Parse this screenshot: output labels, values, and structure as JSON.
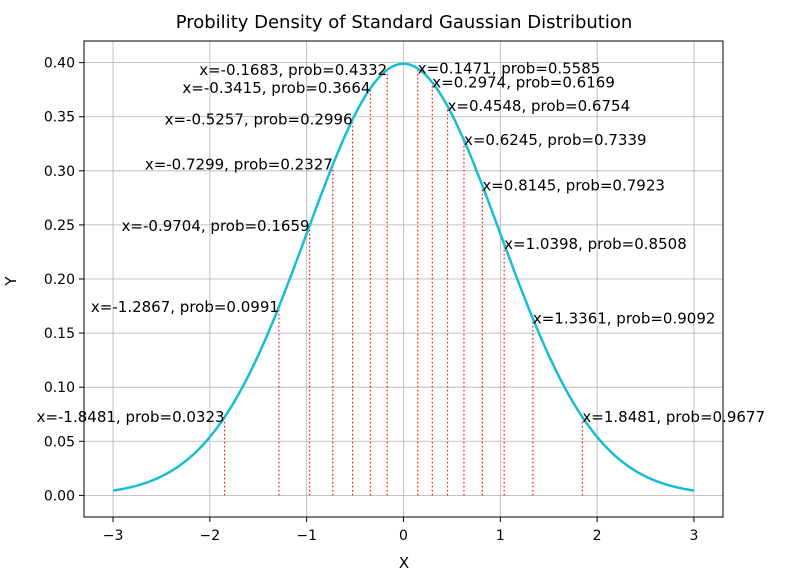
{
  "chart_data": {
    "type": "line",
    "title": "Probility Density of Standard Gaussian Distribution",
    "xlabel": "X",
    "ylabel": "Y",
    "xlim": [
      -3.3,
      3.3
    ],
    "ylim": [
      -0.02,
      0.42
    ],
    "grid": true,
    "x_ticks": [
      -3,
      -2,
      -1,
      0,
      1,
      2,
      3
    ],
    "x_tick_labels": [
      "−3",
      "−2",
      "−1",
      "0",
      "1",
      "2",
      "3"
    ],
    "y_ticks": [
      0.0,
      0.05,
      0.1,
      0.15,
      0.2,
      0.25,
      0.3,
      0.35,
      0.4
    ],
    "y_tick_labels": [
      "0.00",
      "0.05",
      "0.10",
      "0.15",
      "0.20",
      "0.25",
      "0.30",
      "0.35",
      "0.40"
    ],
    "series": [
      {
        "name": "pdf",
        "function": "standard normal density",
        "x_range": [
          -3,
          3
        ],
        "color": "#17becf"
      }
    ],
    "markers": [
      {
        "x": -1.8481,
        "prob": 0.0323,
        "label": "x=-1.8481, prob=0.0323"
      },
      {
        "x": -1.2867,
        "prob": 0.0991,
        "label": "x=-1.2867, prob=0.0991"
      },
      {
        "x": -0.9704,
        "prob": 0.1659,
        "label": "x=-0.9704, prob=0.1659"
      },
      {
        "x": -0.7299,
        "prob": 0.2327,
        "label": "x=-0.7299, prob=0.2327"
      },
      {
        "x": -0.5257,
        "prob": 0.2996,
        "label": "x=-0.5257, prob=0.2996"
      },
      {
        "x": -0.3415,
        "prob": 0.3664,
        "label": "x=-0.3415, prob=0.3664"
      },
      {
        "x": -0.1683,
        "prob": 0.4332,
        "label": "x=-0.1683, prob=0.4332"
      },
      {
        "x": 0.1471,
        "prob": 0.5585,
        "label": "x=0.1471, prob=0.5585"
      },
      {
        "x": 0.2974,
        "prob": 0.6169,
        "label": "x=0.2974, prob=0.6169"
      },
      {
        "x": 0.4548,
        "prob": 0.6754,
        "label": "x=0.4548, prob=0.6754"
      },
      {
        "x": 0.6245,
        "prob": 0.7339,
        "label": "x=0.6245, prob=0.7339"
      },
      {
        "x": 0.8145,
        "prob": 0.7923,
        "label": "x=0.8145, prob=0.7923"
      },
      {
        "x": 1.0398,
        "prob": 0.8508,
        "label": "x=1.0398, prob=0.8508"
      },
      {
        "x": 1.3361,
        "prob": 0.9092,
        "label": "x=1.3361, prob=0.9092"
      },
      {
        "x": 1.8481,
        "prob": 0.9677,
        "label": "x=1.8481, prob=0.9677"
      }
    ],
    "colors": {
      "curve": "#17becf",
      "marker_line": "#ff0000",
      "grid": "#b0b0b0",
      "axis": "#000000"
    }
  }
}
